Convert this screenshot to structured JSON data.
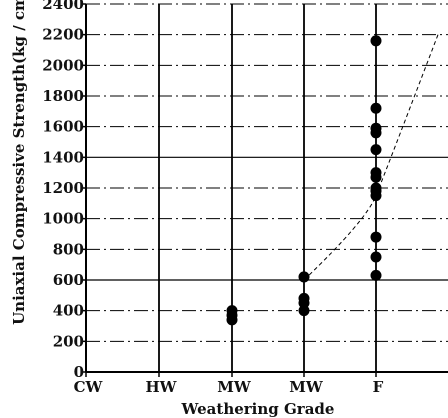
{
  "chart_data": {
    "type": "scatter",
    "title": "",
    "xlabel": "Weathering Grade",
    "ylabel": "Uniaxial Compressive Strength(kg / cm",
    "categories": [
      "CW",
      "HW",
      "MW",
      "MW",
      "F"
    ],
    "ylim": [
      0,
      2400
    ],
    "yticks": [
      0,
      200,
      400,
      600,
      800,
      1000,
      1200,
      1400,
      1600,
      1800,
      2000,
      2200,
      2400
    ],
    "grid": true,
    "points": [
      {
        "x": "MW",
        "x_index": 2,
        "y": 400
      },
      {
        "x": "MW",
        "x_index": 2,
        "y": 370
      },
      {
        "x": "MW",
        "x_index": 2,
        "y": 340
      },
      {
        "x": "MW",
        "x_index": 3,
        "y": 620
      },
      {
        "x": "MW",
        "x_index": 3,
        "y": 480
      },
      {
        "x": "MW",
        "x_index": 3,
        "y": 450
      },
      {
        "x": "MW",
        "x_index": 3,
        "y": 400
      },
      {
        "x": "F",
        "x_index": 4,
        "y": 630
      },
      {
        "x": "F",
        "x_index": 4,
        "y": 750
      },
      {
        "x": "F",
        "x_index": 4,
        "y": 880
      },
      {
        "x": "F",
        "x_index": 4,
        "y": 1150
      },
      {
        "x": "F",
        "x_index": 4,
        "y": 1180
      },
      {
        "x": "F",
        "x_index": 4,
        "y": 1200
      },
      {
        "x": "F",
        "x_index": 4,
        "y": 1270
      },
      {
        "x": "F",
        "x_index": 4,
        "y": 1300
      },
      {
        "x": "F",
        "x_index": 4,
        "y": 1450
      },
      {
        "x": "F",
        "x_index": 4,
        "y": 1560
      },
      {
        "x": "F",
        "x_index": 4,
        "y": 1590
      },
      {
        "x": "F",
        "x_index": 4,
        "y": 1720
      },
      {
        "x": "F",
        "x_index": 4,
        "y": 2160
      }
    ],
    "trend_line": [
      {
        "x_index": 3,
        "y": 600
      },
      {
        "x_index": 4,
        "y": 1150
      },
      {
        "x_index": 5,
        "y": 2200
      }
    ],
    "colors": {
      "point": "#000000",
      "axis": "#000000",
      "grid": "#000000"
    }
  }
}
